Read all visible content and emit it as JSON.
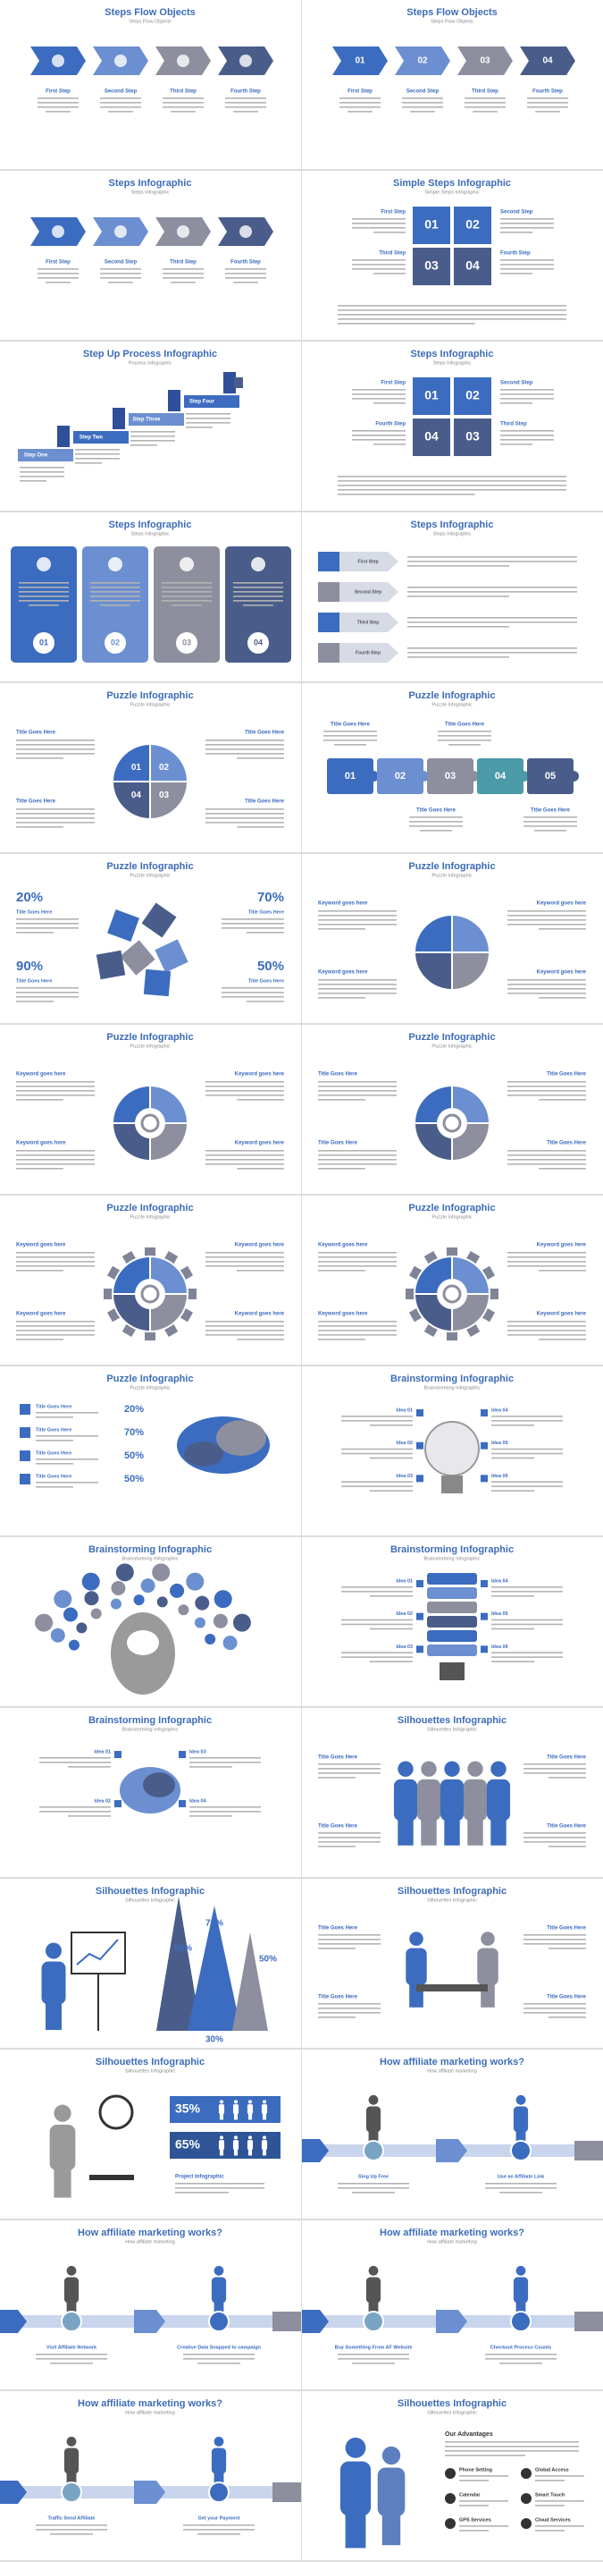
{
  "slides": [
    {
      "title": "Steps Flow Objects",
      "subtitle": "Steps Flow Objects",
      "labels": [
        "First Step",
        "Second Step",
        "Third Step",
        "Fourth Step"
      ]
    },
    {
      "title": "Steps Flow Objects",
      "subtitle": "Steps Flow Objects",
      "numbers": [
        "01",
        "02",
        "03",
        "04"
      ],
      "labels": [
        "First Step",
        "Second Step",
        "Third Step",
        "Fourth Step"
      ]
    },
    {
      "title": "Steps Infographic",
      "subtitle": "Steps Infographic",
      "labels": [
        "First Step",
        "Second Step",
        "Third Step",
        "Fourth Step"
      ]
    },
    {
      "title": "Simple Steps Infographic",
      "subtitle": "Simple Steps Infographic",
      "numbers": [
        "01",
        "02",
        "03",
        "04"
      ],
      "labels": [
        "First Step",
        "Second Step",
        "Third Step",
        "Fourth Step"
      ]
    },
    {
      "title": "Step Up Process Infographic",
      "subtitle": "Process Infographic",
      "labels": [
        "Step One",
        "Step Two",
        "Step Three",
        "Step Four"
      ]
    },
    {
      "title": "Steps Infographic",
      "subtitle": "Steps Infographic",
      "numbers": [
        "01",
        "02",
        "04",
        "03"
      ],
      "labels": [
        "First Step",
        "Second Step",
        "Fourth Step",
        "Third Step"
      ]
    },
    {
      "title": "Steps Infographic",
      "subtitle": "Steps Infographic",
      "numbers": [
        "01",
        "02",
        "03",
        "04"
      ]
    },
    {
      "title": "Steps Infographic",
      "subtitle": "Steps Infographic",
      "labels": [
        "First Step",
        "Second Step",
        "Third Step",
        "Fourth Step"
      ]
    },
    {
      "title": "Puzzle Infographic",
      "subtitle": "Puzzle Infographic",
      "numbers": [
        "01",
        "02",
        "03",
        "04"
      ],
      "labels": [
        "Title Goes Here",
        "Title Goes Here",
        "Title Goes Here",
        "Title Goes Here"
      ]
    },
    {
      "title": "Puzzle Infographic",
      "subtitle": "Puzzle Infographic",
      "numbers": [
        "01",
        "02",
        "03",
        "04",
        "05"
      ],
      "labels": [
        "Title Goes Here",
        "Title Goes Here",
        "Title Goes Here",
        "Title Goes Here"
      ]
    },
    {
      "title": "Puzzle Infographic",
      "subtitle": "Puzzle Infographic",
      "numbers": [
        "20%",
        "70%",
        "90%",
        "50%"
      ],
      "labels": [
        "Title Goes Here",
        "Title Goes Here",
        "Title Goes Here",
        "Title Goes Here"
      ]
    },
    {
      "title": "Puzzle Infographic",
      "subtitle": "Puzzle Infographic",
      "labels": [
        "Keyword goes here",
        "Keyword goes here",
        "Keyword goes here",
        "Keyword goes here"
      ]
    },
    {
      "title": "Puzzle Infographic",
      "subtitle": "Puzzle Infographic",
      "labels": [
        "Keyword goes here",
        "Keyword goes here",
        "Keyword goes here",
        "Keyword goes here"
      ]
    },
    {
      "title": "Puzzle Infographic",
      "subtitle": "Puzzle Infographic",
      "labels": [
        "Title Goes Here",
        "Title Goes Here",
        "Title Goes Here",
        "Title Goes Here"
      ]
    },
    {
      "title": "Puzzle Infographic",
      "subtitle": "Puzzle Infographic",
      "labels": [
        "Keyword goes here",
        "Keyword goes here",
        "Keyword goes here",
        "Keyword goes here"
      ]
    },
    {
      "title": "Puzzle Infographic",
      "subtitle": "Puzzle Infographic",
      "labels": [
        "Keyword goes here",
        "Keyword goes here",
        "Keyword goes here",
        "Keyword goes here"
      ]
    },
    {
      "title": "Puzzle Infographic",
      "subtitle": "Puzzle Infographic",
      "numbers": [
        "20%",
        "70%",
        "50%",
        "50%"
      ],
      "labels": [
        "Title Goes Here",
        "Title Goes Here",
        "Title Goes Here",
        "Title Goes Here"
      ]
    },
    {
      "title": "Brainstorming Infographic",
      "subtitle": "Brainstorming Infographic",
      "labels": [
        "Idea 01",
        "Idea 02",
        "Idea 03",
        "Idea 04",
        "Idea 05",
        "Idea 06"
      ]
    },
    {
      "title": "Brainstorming Infographic",
      "subtitle": "Brainstorming Infographic"
    },
    {
      "title": "Brainstorming Infographic",
      "subtitle": "Brainstorming Infographic",
      "labels": [
        "Idea 01",
        "Idea 02",
        "Idea 03",
        "Idea 04",
        "Idea 05",
        "Idea 06"
      ]
    },
    {
      "title": "Brainstorming Infographic",
      "subtitle": "Brainstorming Infographic",
      "labels": [
        "Idea 01",
        "Idea 02",
        "Idea 03",
        "Idea 04"
      ]
    },
    {
      "title": "Silhouettes Infographic",
      "subtitle": "Silhouettes Infographic",
      "labels": [
        "Title Goes Here",
        "Title Goes Here",
        "Title Goes Here",
        "Title Goes Here"
      ]
    },
    {
      "title": "Silhouettes Infographic",
      "subtitle": "Silhouettes Infographic",
      "numbers": [
        "70%",
        "50%",
        "50%",
        "30%"
      ]
    },
    {
      "title": "Silhouettes Infographic",
      "subtitle": "Silhouettes Infographic",
      "labels": [
        "Title Goes Here",
        "Title Goes Here",
        "Title Goes Here",
        "Title Goes Here"
      ]
    },
    {
      "title": "Silhouettes Infographic",
      "subtitle": "Silhouettes Infographic",
      "numbers": [
        "35%",
        "65%"
      ],
      "labels": [
        "Project Infographic"
      ]
    },
    {
      "title": "How affiliate marketing works?",
      "subtitle": "How affiliate marketing",
      "labels": [
        "Sing Up Free",
        "Use an Affiliate Link"
      ]
    },
    {
      "title": "How affiliate marketing works?",
      "subtitle": "How affiliate marketing",
      "labels": [
        "Visit Affiliate Network",
        "Creative Data Snapped to campaign"
      ]
    },
    {
      "title": "How affiliate marketing works?",
      "subtitle": "How affiliate marketing",
      "labels": [
        "Buy Something From AF Website",
        "Checkout Process Counts"
      ]
    },
    {
      "title": "How affiliate marketing works?",
      "subtitle": "How affiliate marketing",
      "labels": [
        "Traffic Send Affiliate",
        "Get your Payment"
      ]
    },
    {
      "title": "Silhouettes Infographic",
      "subtitle": "Silhouettes Infographic",
      "labels": [
        "Our Advantages",
        "Phone Setting",
        "Global Access",
        "Calendar",
        "Smart Touch",
        "GPS Services",
        "Cloud Services"
      ]
    }
  ]
}
